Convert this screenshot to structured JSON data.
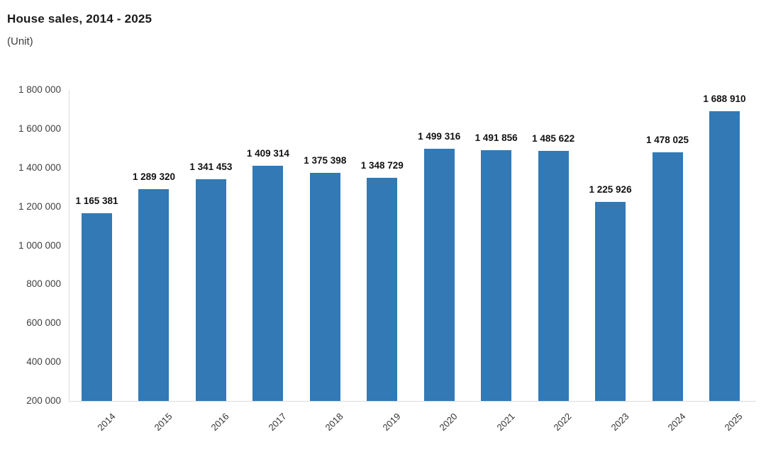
{
  "header": {
    "title": "House sales, 2014 - 2025",
    "subtitle": "(Unit)"
  },
  "chart_data": {
    "type": "bar",
    "title": "House sales, 2014 - 2025",
    "unit_label": "(Unit)",
    "categories": [
      "2014",
      "2015",
      "2016",
      "2017",
      "2018",
      "2019",
      "2020",
      "2021",
      "2022",
      "2023",
      "2024",
      "2025"
    ],
    "values": [
      1165381,
      1289320,
      1341453,
      1409314,
      1375398,
      1348729,
      1499316,
      1491856,
      1485622,
      1225926,
      1478025,
      1688910
    ],
    "value_labels": [
      "1 165 381",
      "1 289 320",
      "1 341 453",
      "1 409 314",
      "1 375 398",
      "1 348 729",
      "1 499 316",
      "1 491 856",
      "1 485 622",
      "1 225 926",
      "1 478 025",
      "1 688 910"
    ],
    "xlabel": "",
    "ylabel": "",
    "ylim": [
      200000,
      1800000
    ],
    "y_tick_step": 200000,
    "y_tick_labels": [
      "200 000",
      "400 000",
      "600 000",
      "800 000",
      "1 000 000",
      "1 200 000",
      "1 400 000",
      "1 600 000",
      "1 800 000"
    ],
    "grid": false,
    "legend": "none",
    "bar_color": "#3279b5",
    "axis_line_color": "#dcdcdc",
    "value_label_color": "#111111",
    "tick_label_color": "#3f3f3f"
  }
}
